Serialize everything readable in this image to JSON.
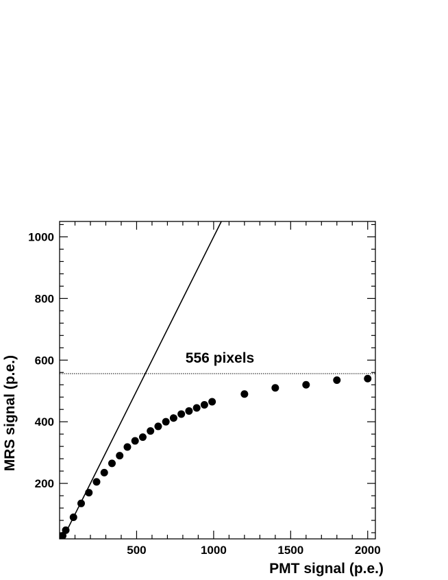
{
  "chart_data": {
    "type": "scatter",
    "xlabel": "PMT signal (p.e.)",
    "ylabel": "MRS signal (p.e.)",
    "xlim": [
      0,
      2050
    ],
    "ylim": [
      20,
      1050
    ],
    "x_ticks": [
      500,
      1000,
      1500,
      2000
    ],
    "y_ticks": [
      200,
      400,
      600,
      800,
      1000
    ],
    "x_tick_labels": [
      "500",
      "1000",
      "1500",
      "2000"
    ],
    "y_tick_labels": [
      "200",
      "400",
      "600",
      "800",
      "1000"
    ],
    "grid": false,
    "series": [
      {
        "marker": "filled-circle",
        "color": "#000000",
        "x": [
          20,
          40,
          90,
          140,
          190,
          240,
          290,
          340,
          390,
          440,
          490,
          540,
          590,
          640,
          690,
          740,
          790,
          840,
          890,
          940,
          990,
          1200,
          1400,
          1600,
          1800,
          2000
        ],
        "y": [
          30,
          48,
          90,
          135,
          170,
          205,
          235,
          265,
          290,
          318,
          338,
          350,
          370,
          385,
          400,
          412,
          425,
          435,
          445,
          455,
          465,
          490,
          510,
          520,
          535,
          540
        ]
      },
      {
        "style": "solid-line",
        "color": "#000000",
        "x": [
          20,
          1050
        ],
        "y": [
          20,
          1050
        ]
      }
    ],
    "hlines": [
      {
        "y": 556,
        "style": "dotted",
        "label": "556 pixels"
      }
    ]
  }
}
